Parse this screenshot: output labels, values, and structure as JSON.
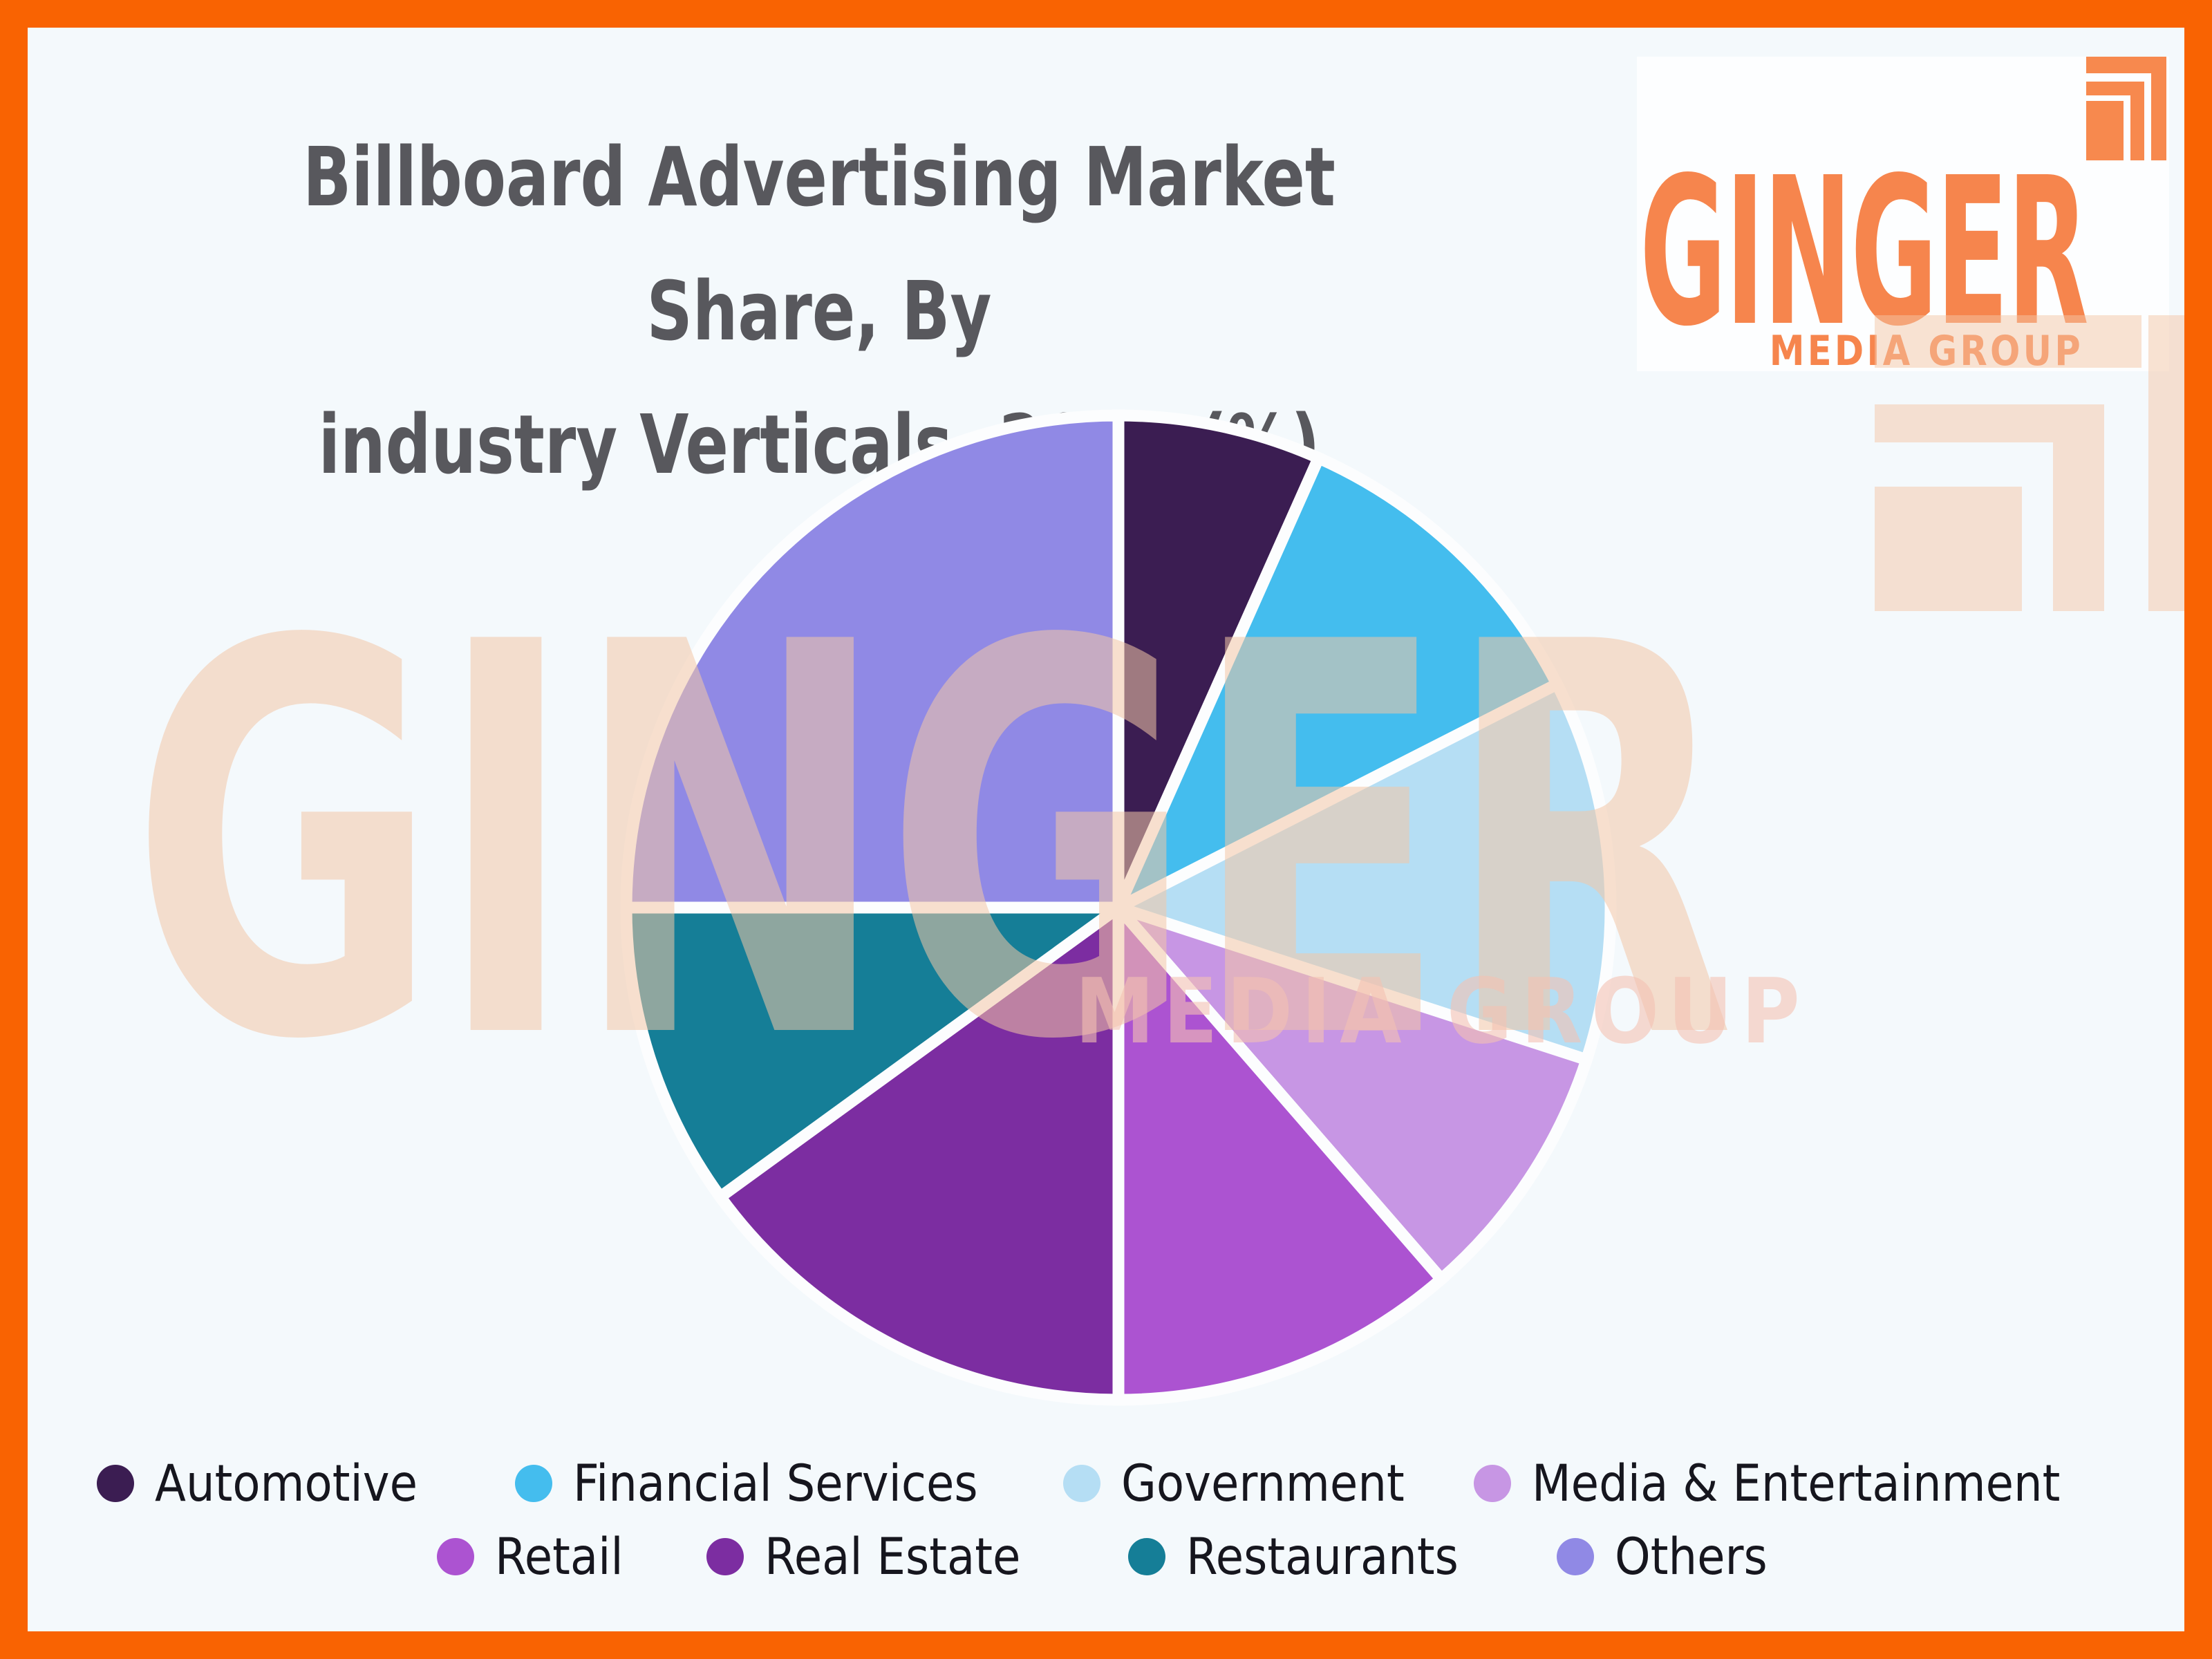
{
  "frame": {
    "border_color": "#f96302",
    "background_color": "#f4f9fc"
  },
  "title": {
    "line1": "Billboard Advertising Market Share, By",
    "line2": "industry Verticals, 2022 (%)",
    "color": "#58585d"
  },
  "logo": {
    "name": "GINGER",
    "subtitle": "MEDIA GROUP",
    "color": "#f6854d"
  },
  "watermark": {
    "text_large": "GINGER",
    "text_small": "MEDIA GROUP",
    "color": "rgba(243,198,165,0.55)"
  },
  "chart_data": {
    "type": "pie",
    "title": "Billboard Advertising Market Share, By industry Verticals, 2022 (%)",
    "unit": "%",
    "legend_position": "bottom",
    "gap_color": "#fcfdfe",
    "slices": [
      {
        "label": "Automotive",
        "value": 7,
        "start_angle": 0,
        "end_angle": 24,
        "color": "#3b1d52"
      },
      {
        "label": "Financial Services",
        "value": 11,
        "start_angle": 24,
        "end_angle": 63,
        "color": "#44bdee"
      },
      {
        "label": "Government",
        "value": 12,
        "start_angle": 63,
        "end_angle": 108,
        "color": "#b5def4"
      },
      {
        "label": "Media & Entertainment",
        "value": 9,
        "start_angle": 108,
        "end_angle": 139,
        "color": "#c796e4"
      },
      {
        "label": "Retail",
        "value": 11,
        "start_angle": 139,
        "end_angle": 180,
        "color": "#ac53d1"
      },
      {
        "label": "Real Estate",
        "value": 15,
        "start_angle": 180,
        "end_angle": 234,
        "color": "#7c2da1"
      },
      {
        "label": "Restaurants",
        "value": 10,
        "start_angle": 234,
        "end_angle": 270,
        "color": "#157e97"
      },
      {
        "label": "Others",
        "value": 25,
        "start_angle": 270,
        "end_angle": 360,
        "color": "#9089e5"
      }
    ]
  }
}
